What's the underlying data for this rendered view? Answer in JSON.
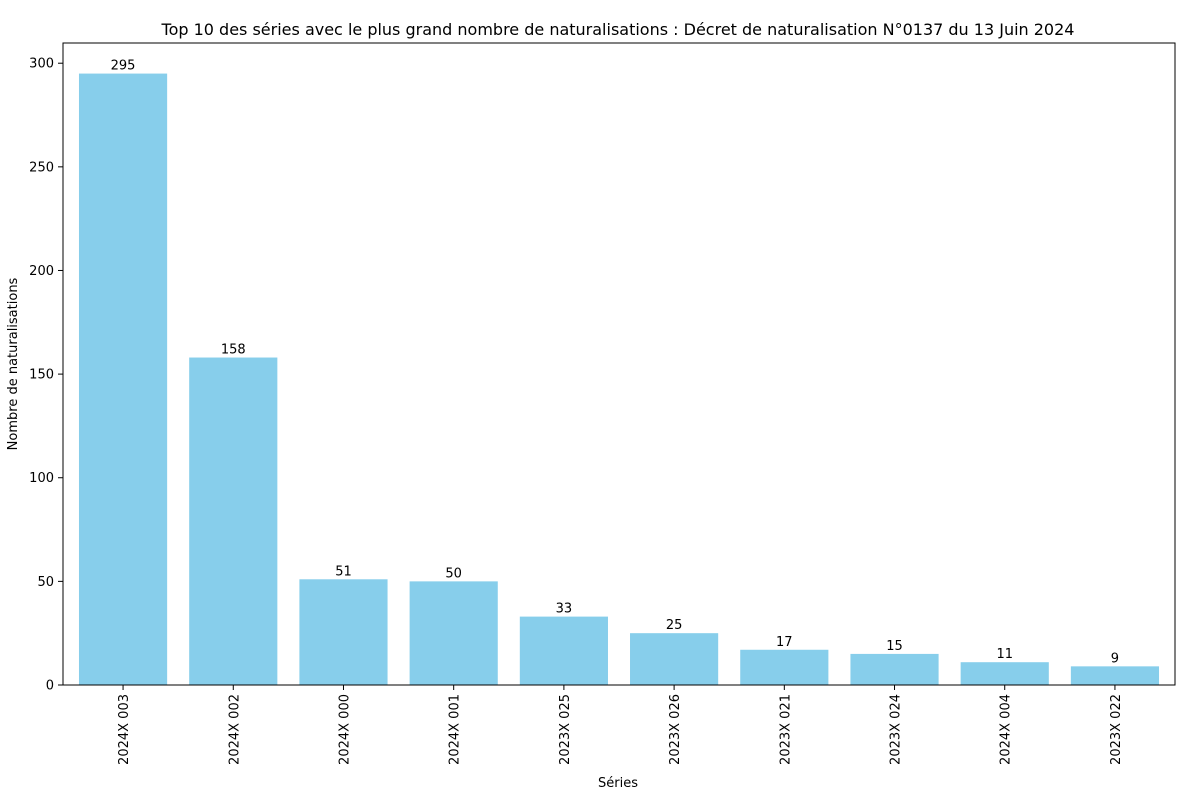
{
  "chart_data": {
    "type": "bar",
    "title": "Top 10 des séries avec le plus grand nombre de naturalisations : Décret de naturalisation N°0137 du 13 Juin 2024",
    "xlabel": "Séries",
    "ylabel": "Nombre de naturalisations",
    "categories": [
      "2024X 003",
      "2024X 002",
      "2024X 000",
      "2024X 001",
      "2023X 025",
      "2023X 026",
      "2023X 021",
      "2023X 024",
      "2024X 004",
      "2023X 022"
    ],
    "values": [
      295,
      158,
      51,
      50,
      33,
      25,
      17,
      15,
      11,
      9
    ],
    "ylim": [
      0,
      309.75
    ],
    "yticks": [
      0,
      50,
      100,
      150,
      200,
      250,
      300
    ],
    "bar_color": "#87ceeb",
    "grid": false,
    "legend": "none"
  }
}
